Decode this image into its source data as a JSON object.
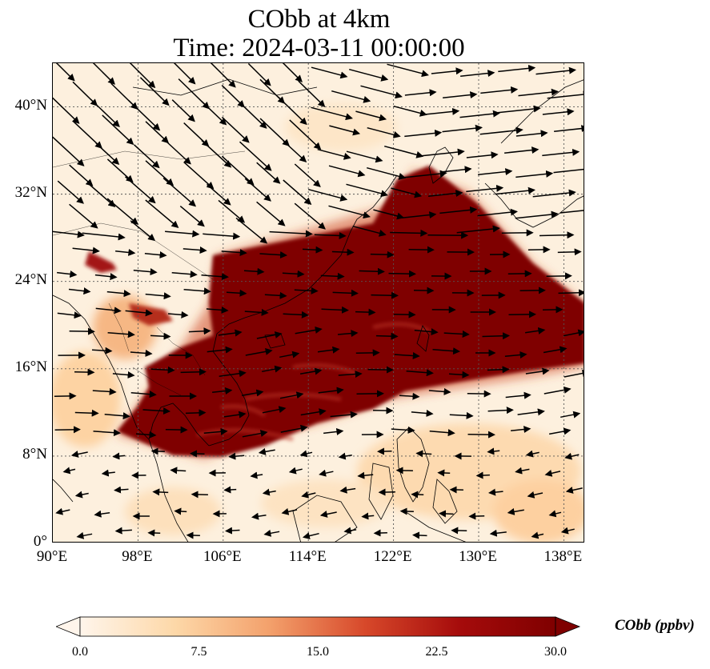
{
  "figure": {
    "title_line1": "CObb at 4km",
    "title_line2": "Time: 2024-03-11 00:00:00"
  },
  "map": {
    "lon_range": [
      90,
      140
    ],
    "lat_range": [
      0,
      44
    ],
    "x_ticks": [
      "90°E",
      "98°E",
      "106°E",
      "114°E",
      "122°E",
      "130°E",
      "138°E"
    ],
    "y_ticks": [
      "0°",
      "8°N",
      "16°N",
      "24°N",
      "32°N",
      "40°N"
    ],
    "gridlines": "dotted",
    "field": "CObb",
    "wind_vectors": "shown"
  },
  "colorbar": {
    "label": "CObb (ppbv)",
    "ticks": [
      "0.0",
      "7.5",
      "15.0",
      "22.5",
      "30.0"
    ],
    "min": 0,
    "max": 30,
    "extend": "both",
    "colormap": [
      "#fff5eb",
      "#fdd8a8",
      "#f3a06b",
      "#d7482a",
      "#a50b0b",
      "#7f0000"
    ]
  }
}
